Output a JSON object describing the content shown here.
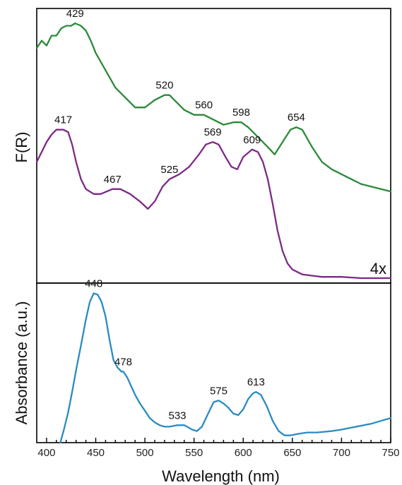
{
  "chart_data": [
    {
      "type": "line",
      "panel": "top",
      "ylabel": "F(R)",
      "annotation": "4x",
      "xlim": [
        390,
        750
      ],
      "series": [
        {
          "color": "#2a8a3a",
          "points": [
            [
              390,
              0.9
            ],
            [
              395,
              0.93
            ],
            [
              400,
              0.91
            ],
            [
              405,
              0.95
            ],
            [
              410,
              0.95
            ],
            [
              415,
              0.98
            ],
            [
              420,
              0.99
            ],
            [
              425,
              0.99
            ],
            [
              429,
              1.0
            ],
            [
              435,
              0.99
            ],
            [
              440,
              0.97
            ],
            [
              445,
              0.93
            ],
            [
              450,
              0.88
            ],
            [
              460,
              0.81
            ],
            [
              470,
              0.74
            ],
            [
              480,
              0.7
            ],
            [
              490,
              0.66
            ],
            [
              500,
              0.66
            ],
            [
              510,
              0.69
            ],
            [
              520,
              0.71
            ],
            [
              525,
              0.71
            ],
            [
              530,
              0.69
            ],
            [
              540,
              0.65
            ],
            [
              550,
              0.63
            ],
            [
              560,
              0.63
            ],
            [
              570,
              0.61
            ],
            [
              580,
              0.59
            ],
            [
              590,
              0.6
            ],
            [
              598,
              0.6
            ],
            [
              605,
              0.58
            ],
            [
              615,
              0.54
            ],
            [
              625,
              0.5
            ],
            [
              632,
              0.47
            ],
            [
              640,
              0.52
            ],
            [
              648,
              0.57
            ],
            [
              654,
              0.58
            ],
            [
              660,
              0.57
            ],
            [
              670,
              0.5
            ],
            [
              680,
              0.44
            ],
            [
              690,
              0.41
            ],
            [
              700,
              0.39
            ],
            [
              710,
              0.37
            ],
            [
              720,
              0.35
            ],
            [
              730,
              0.34
            ],
            [
              740,
              0.33
            ],
            [
              750,
              0.32
            ]
          ],
          "labels": [
            {
              "x": 429,
              "text": "429"
            },
            {
              "x": 520,
              "text": "520"
            },
            {
              "x": 560,
              "text": "560"
            },
            {
              "x": 598,
              "text": "598"
            },
            {
              "x": 654,
              "text": "654"
            }
          ]
        },
        {
          "color": "#7d2a87",
          "points": [
            [
              390,
              0.44
            ],
            [
              395,
              0.48
            ],
            [
              400,
              0.52
            ],
            [
              405,
              0.55
            ],
            [
              410,
              0.57
            ],
            [
              417,
              0.57
            ],
            [
              422,
              0.56
            ],
            [
              426,
              0.51
            ],
            [
              430,
              0.44
            ],
            [
              435,
              0.37
            ],
            [
              440,
              0.33
            ],
            [
              448,
              0.31
            ],
            [
              455,
              0.31
            ],
            [
              467,
              0.33
            ],
            [
              475,
              0.33
            ],
            [
              485,
              0.31
            ],
            [
              495,
              0.28
            ],
            [
              503,
              0.25
            ],
            [
              510,
              0.28
            ],
            [
              518,
              0.34
            ],
            [
              525,
              0.37
            ],
            [
              535,
              0.39
            ],
            [
              545,
              0.42
            ],
            [
              555,
              0.47
            ],
            [
              562,
              0.51
            ],
            [
              569,
              0.52
            ],
            [
              575,
              0.51
            ],
            [
              582,
              0.46
            ],
            [
              588,
              0.42
            ],
            [
              594,
              0.41
            ],
            [
              600,
              0.46
            ],
            [
              609,
              0.49
            ],
            [
              615,
              0.48
            ],
            [
              620,
              0.44
            ],
            [
              625,
              0.37
            ],
            [
              630,
              0.27
            ],
            [
              635,
              0.16
            ],
            [
              640,
              0.08
            ],
            [
              645,
              0.03
            ],
            [
              650,
              0.005
            ],
            [
              660,
              -0.015
            ],
            [
              670,
              -0.02
            ],
            [
              680,
              -0.025
            ],
            [
              700,
              -0.025
            ],
            [
              720,
              -0.03
            ],
            [
              750,
              -0.03
            ]
          ],
          "labels": [
            {
              "x": 417,
              "text": "417"
            },
            {
              "x": 467,
              "text": "467"
            },
            {
              "x": 525,
              "text": "525"
            },
            {
              "x": 569,
              "text": "569"
            },
            {
              "x": 609,
              "text": "609"
            }
          ]
        }
      ]
    },
    {
      "type": "line",
      "panel": "bottom",
      "ylabel": "Absorbance (a.u.)",
      "xlabel": "Wavelength (nm)",
      "xlim": [
        390,
        750
      ],
      "xticks": [
        400,
        450,
        500,
        550,
        600,
        650,
        700,
        750
      ],
      "series": [
        {
          "color": "#2a8ac4",
          "points": [
            [
              414,
              -0.05
            ],
            [
              418,
              0.05
            ],
            [
              422,
              0.16
            ],
            [
              426,
              0.3
            ],
            [
              430,
              0.45
            ],
            [
              435,
              0.62
            ],
            [
              440,
              0.8
            ],
            [
              444,
              0.92
            ],
            [
              448,
              0.98
            ],
            [
              452,
              0.97
            ],
            [
              456,
              0.92
            ],
            [
              460,
              0.82
            ],
            [
              464,
              0.66
            ],
            [
              468,
              0.52
            ],
            [
              472,
              0.47
            ],
            [
              476,
              0.44
            ],
            [
              478,
              0.44
            ],
            [
              482,
              0.4
            ],
            [
              486,
              0.34
            ],
            [
              490,
              0.28
            ],
            [
              495,
              0.22
            ],
            [
              500,
              0.17
            ],
            [
              505,
              0.12
            ],
            [
              510,
              0.09
            ],
            [
              515,
              0.07
            ],
            [
              520,
              0.06
            ],
            [
              525,
              0.06
            ],
            [
              533,
              0.07
            ],
            [
              540,
              0.07
            ],
            [
              548,
              0.04
            ],
            [
              553,
              0.03
            ],
            [
              558,
              0.06
            ],
            [
              565,
              0.16
            ],
            [
              570,
              0.23
            ],
            [
              575,
              0.24
            ],
            [
              580,
              0.22
            ],
            [
              585,
              0.19
            ],
            [
              590,
              0.15
            ],
            [
              595,
              0.14
            ],
            [
              600,
              0.18
            ],
            [
              605,
              0.25
            ],
            [
              610,
              0.29
            ],
            [
              613,
              0.3
            ],
            [
              618,
              0.28
            ],
            [
              624,
              0.2
            ],
            [
              630,
              0.1
            ],
            [
              636,
              0.03
            ],
            [
              642,
              0.0
            ],
            [
              648,
              0.0
            ],
            [
              655,
              0.01
            ],
            [
              665,
              0.02
            ],
            [
              675,
              0.02
            ],
            [
              690,
              0.03
            ],
            [
              700,
              0.04
            ],
            [
              715,
              0.06
            ],
            [
              730,
              0.08
            ],
            [
              740,
              0.1
            ],
            [
              750,
              0.12
            ]
          ],
          "labels": [
            {
              "x": 448,
              "text": "448"
            },
            {
              "x": 478,
              "text": "478"
            },
            {
              "x": 533,
              "text": "533"
            },
            {
              "x": 575,
              "text": "575"
            },
            {
              "x": 613,
              "text": "613"
            }
          ]
        }
      ]
    }
  ]
}
